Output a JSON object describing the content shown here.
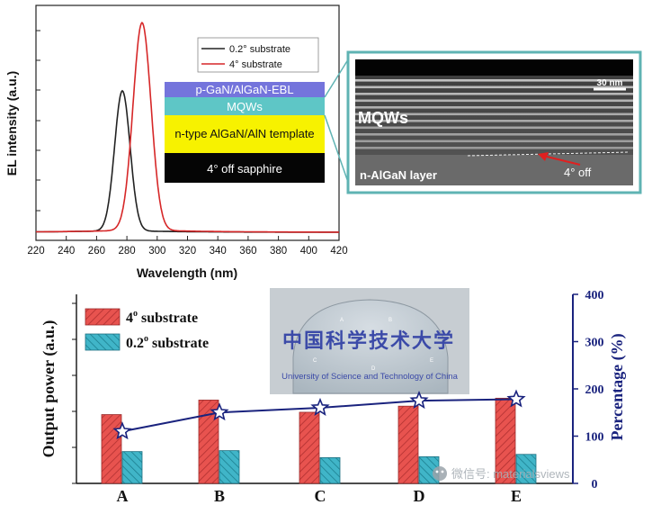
{
  "chart_data": [
    {
      "type": "line",
      "xlabel": "Wavelength (nm)",
      "ylabel": "EL intensity (a.u.)",
      "xlim": [
        220,
        420
      ],
      "x_ticks": [
        220,
        240,
        260,
        280,
        300,
        320,
        340,
        360,
        380,
        400,
        420
      ],
      "series": [
        {
          "name": "0.2° substrate",
          "color": "#222222",
          "peak_nm": 277,
          "peak_rel": 0.675,
          "fwhm_nm": 12
        },
        {
          "name": "4° substrate",
          "color": "#d62728",
          "peak_nm": 290,
          "peak_rel": 1.0,
          "fwhm_nm": 14
        }
      ],
      "inset_layers": [
        {
          "label": "p-GaN/AlGaN-EBL",
          "color": "#7474dc"
        },
        {
          "label": "MQWs",
          "color": "#5ec6c6"
        },
        {
          "label": "n-type AlGaN/AlN template",
          "color": "#f7f200"
        },
        {
          "label": "4°  off sapphire",
          "color": "#050505"
        }
      ],
      "tem_image": {
        "main_label": "MQWs",
        "layer_label": "n-AlGaN layer",
        "off_label": "4°  off",
        "scale_label": "30 nm",
        "border_color": "#5fb3b3"
      }
    },
    {
      "type": "bar",
      "categories": [
        "A",
        "B",
        "C",
        "D",
        "E"
      ],
      "ylabel": "Output power (a.u.)",
      "y2label": "Percentage (%)",
      "y2lim": [
        0,
        400
      ],
      "y2_ticks": [
        0,
        100,
        200,
        300,
        400
      ],
      "series": [
        {
          "name": "4° substrate",
          "values": [
            1.47,
            1.78,
            1.52,
            1.65,
            1.82
          ],
          "color": "#e8534f"
        },
        {
          "name": "0.2° substrate",
          "values": [
            0.68,
            0.7,
            0.55,
            0.57,
            0.62
          ],
          "color": "#40b5c8"
        },
        {
          "name": "Percentage",
          "values": [
            110,
            150,
            160,
            175,
            178
          ],
          "axis": "right",
          "color": "#1a237e"
        }
      ],
      "legend": {
        "items": [
          {
            "sup": "o",
            "base": "4",
            "text": " substrate"
          },
          {
            "sup": "o",
            "base": "0.2",
            "text": " substrate"
          }
        ]
      },
      "wafer_photo": {
        "text_line1": "中国科学技术大学",
        "text_line2": "University of Science and Technology of China",
        "marks": [
          "A",
          "B",
          "C",
          "D",
          "E"
        ]
      }
    }
  ],
  "watermark": {
    "text": "微信号: materialsviews"
  }
}
